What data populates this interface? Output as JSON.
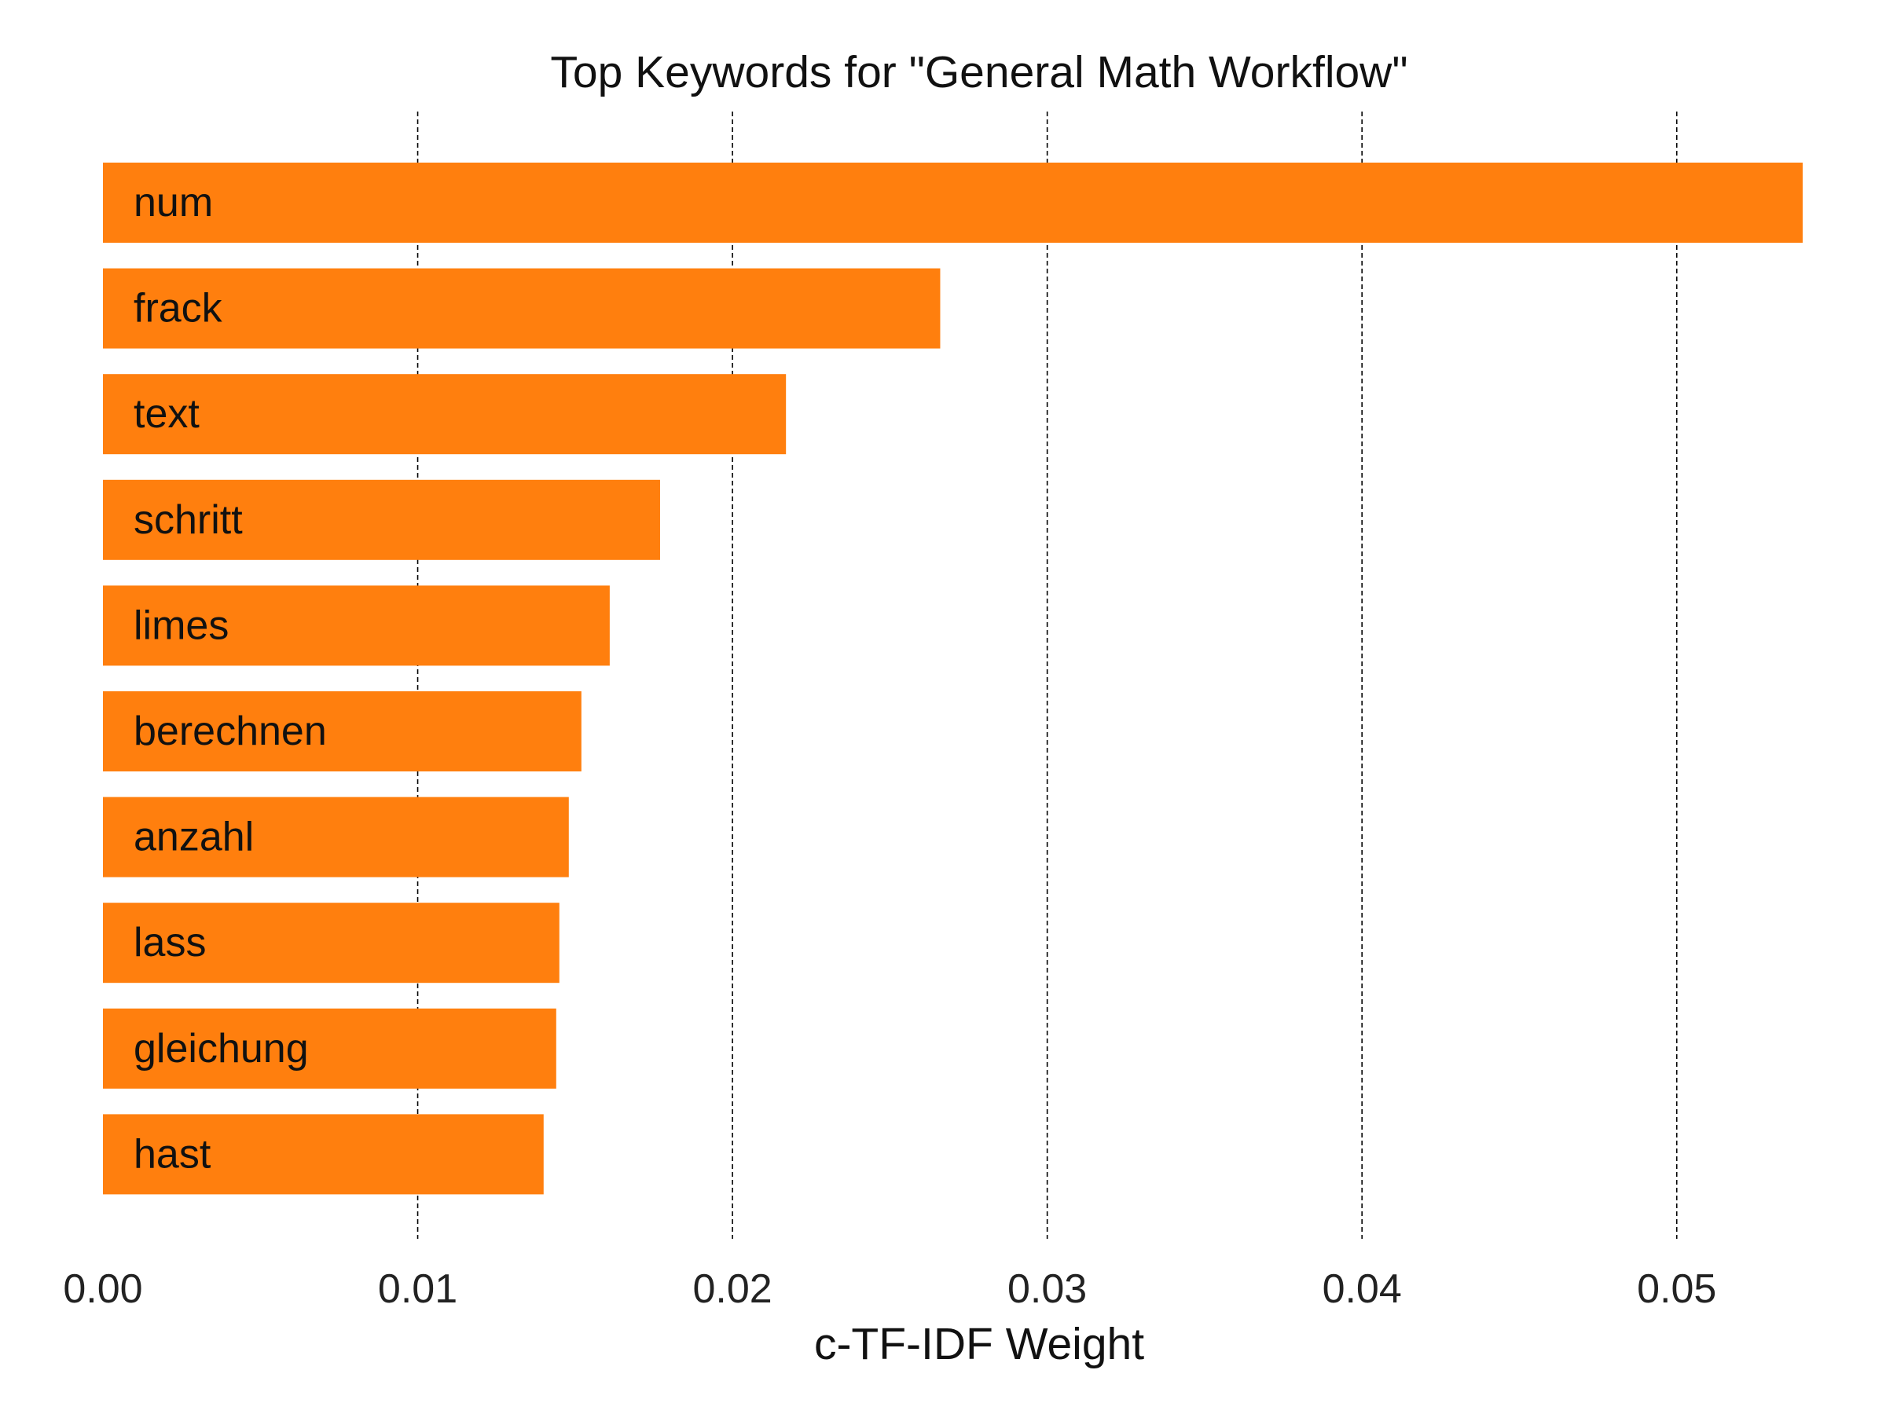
{
  "chart_data": {
    "type": "bar",
    "orientation": "horizontal",
    "title": "Top Keywords for \"General Math Workflow\"",
    "xlabel": "c-TF-IDF Weight",
    "ylabel": "",
    "xlim": [
      0.0,
      0.055
    ],
    "xticks": [
      0.0,
      0.01,
      0.02,
      0.03,
      0.04,
      0.05
    ],
    "xtick_labels": [
      "0.00",
      "0.01",
      "0.02",
      "0.03",
      "0.04",
      "0.05"
    ],
    "grid": "vertical dashed",
    "legend": "none",
    "bar_color": "#ff7f0e",
    "categories": [
      "num",
      "frack",
      "text",
      "schritt",
      "limes",
      "berechnen",
      "anzahl",
      "lass",
      "gleichung",
      "hast"
    ],
    "values": [
      0.054,
      0.0266,
      0.0217,
      0.0177,
      0.0161,
      0.0152,
      0.0148,
      0.0145,
      0.0144,
      0.014
    ]
  }
}
